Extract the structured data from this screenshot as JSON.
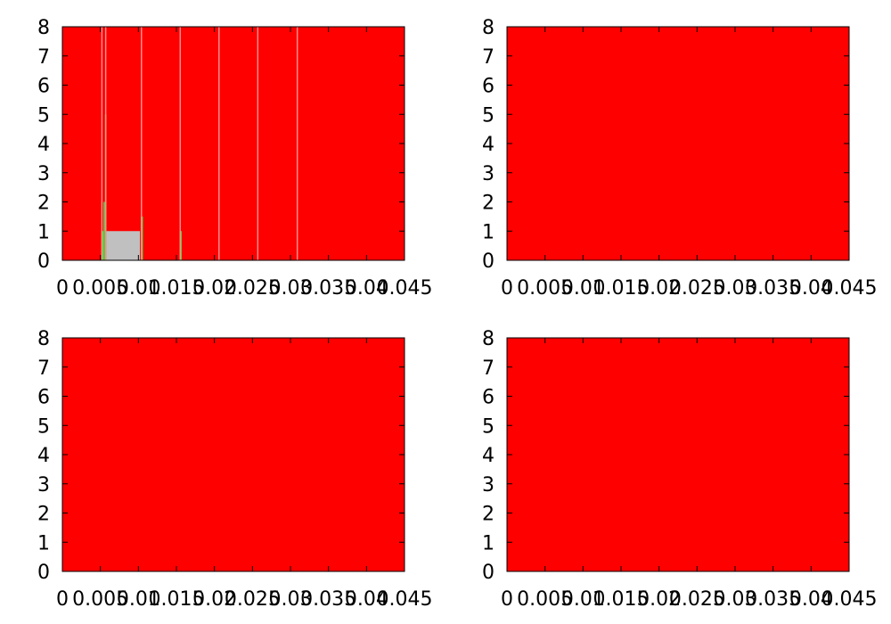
{
  "chart_data": [
    {
      "type": "area",
      "panel": "top-left",
      "xlim": [
        0,
        0.045
      ],
      "ylim": [
        0,
        8
      ],
      "x_ticks": [
        "0",
        "0.005",
        "0.01",
        "0.015",
        "0.02",
        "0.025",
        "0.03",
        "0.035",
        "0.04",
        "0.045"
      ],
      "y_ticks": [
        "0",
        "1",
        "2",
        "3",
        "4",
        "5",
        "6",
        "7",
        "8"
      ],
      "grid": false,
      "background_color": "#ff0000",
      "series": [
        {
          "color": "#ff0000",
          "fill": "full",
          "note_regions": []
        },
        {
          "color": "#c0c0c0",
          "regions": [
            {
              "x0": 0.0058,
              "x1": 0.0102,
              "y0": 0,
              "y1": 1
            }
          ]
        },
        {
          "color": "#44dd44",
          "regions": [
            {
              "x0": 0.0051,
              "x1": 0.0054,
              "y0": 0,
              "y1": 1.0
            },
            {
              "x0": 0.0054,
              "x1": 0.0056,
              "y0": 0,
              "y1": 2.0
            },
            {
              "x0": 0.0056,
              "x1": 0.0058,
              "y0": 0,
              "y1": 5.0
            },
            {
              "x0": 0.0103,
              "x1": 0.0106,
              "y0": 0,
              "y1": 1.5
            },
            {
              "x0": 0.0155,
              "x1": 0.0157,
              "y0": 0,
              "y1": 1.0
            }
          ]
        }
      ],
      "spikes": [
        {
          "x": 0.0052,
          "y": 8.0
        },
        {
          "x": 0.0057,
          "y": 8.0
        },
        {
          "x": 0.0104,
          "y": 8.0
        },
        {
          "x": 0.0155,
          "y": 8.0
        },
        {
          "x": 0.0206,
          "y": 8.0
        },
        {
          "x": 0.0257,
          "y": 8.0
        },
        {
          "x": 0.0309,
          "y": 8.0
        }
      ]
    },
    {
      "type": "area",
      "panel": "top-right",
      "xlim": [
        0,
        0.045
      ],
      "ylim": [
        0,
        8
      ],
      "x_ticks": [
        "0",
        "0.005",
        "0.01",
        "0.015",
        "0.02",
        "0.025",
        "0.03",
        "0.035",
        "0.04",
        "0.045"
      ],
      "y_ticks": [
        "0",
        "1",
        "2",
        "3",
        "4",
        "5",
        "6",
        "7",
        "8"
      ],
      "grid": false,
      "background_color": "#ff0000",
      "series": [
        {
          "color": "#ff0000",
          "fill": "full"
        }
      ],
      "spikes": []
    },
    {
      "type": "area",
      "panel": "bottom-left",
      "xlim": [
        0,
        0.045
      ],
      "ylim": [
        0,
        8
      ],
      "x_ticks": [
        "0",
        "0.005",
        "0.01",
        "0.015",
        "0.02",
        "0.025",
        "0.03",
        "0.035",
        "0.04",
        "0.045"
      ],
      "y_ticks": [
        "0",
        "1",
        "2",
        "3",
        "4",
        "5",
        "6",
        "7",
        "8"
      ],
      "grid": false,
      "background_color": "#ff0000",
      "series": [
        {
          "color": "#ff0000",
          "fill": "full"
        }
      ],
      "spikes": []
    },
    {
      "type": "area",
      "panel": "bottom-right",
      "xlim": [
        0,
        0.045
      ],
      "ylim": [
        0,
        8
      ],
      "x_ticks": [
        "0",
        "0.005",
        "0.01",
        "0.015",
        "0.02",
        "0.025",
        "0.03",
        "0.035",
        "0.04",
        "0.045"
      ],
      "y_ticks": [
        "0",
        "1",
        "2",
        "3",
        "4",
        "5",
        "6",
        "7",
        "8"
      ],
      "grid": false,
      "background_color": "#ff0000",
      "series": [
        {
          "color": "#ff0000",
          "fill": "full"
        }
      ],
      "spikes": []
    }
  ]
}
